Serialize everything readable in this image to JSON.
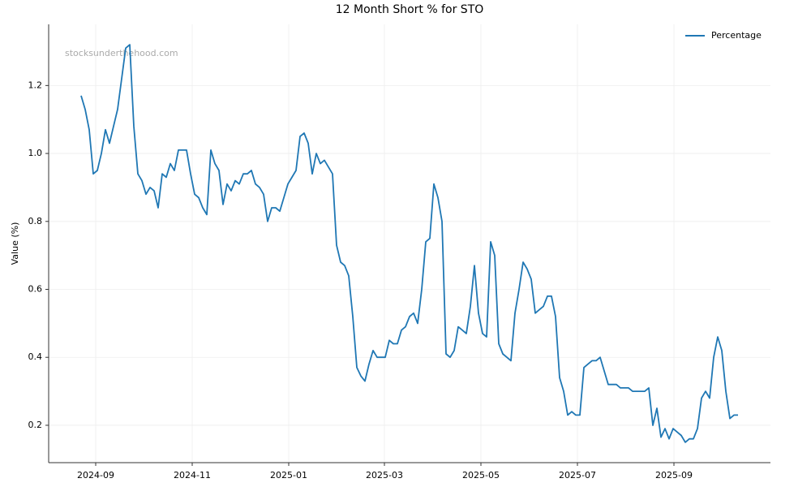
{
  "chart_data": {
    "type": "line",
    "title": "12 Month Short % for STO",
    "watermark": "stocksunderthehood.com",
    "ylabel": "Value (%)",
    "legend": "upper right",
    "grid": true,
    "series": [
      {
        "name": "Percentage",
        "color": "#1f77b4",
        "values": [
          1.17,
          1.13,
          1.07,
          0.94,
          0.95,
          1.0,
          1.07,
          1.03,
          1.08,
          1.13,
          1.22,
          1.31,
          1.32,
          1.08,
          0.94,
          0.92,
          0.88,
          0.9,
          0.89,
          0.84,
          0.94,
          0.93,
          0.97,
          0.95,
          1.01,
          1.01,
          1.01,
          0.94,
          0.88,
          0.87,
          0.84,
          0.82,
          1.01,
          0.97,
          0.95,
          0.85,
          0.91,
          0.89,
          0.92,
          0.91,
          0.94,
          0.94,
          0.95,
          0.91,
          0.9,
          0.88,
          0.8,
          0.84,
          0.84,
          0.83,
          0.87,
          0.91,
          0.93,
          0.95,
          1.05,
          1.06,
          1.03,
          0.94,
          1.0,
          0.97,
          0.98,
          0.96,
          0.94,
          0.73,
          0.68,
          0.67,
          0.64,
          0.52,
          0.37,
          0.345,
          0.33,
          0.38,
          0.42,
          0.4,
          0.4,
          0.4,
          0.45,
          0.44,
          0.44,
          0.48,
          0.49,
          0.52,
          0.53,
          0.5,
          0.6,
          0.74,
          0.75,
          0.91,
          0.87,
          0.8,
          0.41,
          0.4,
          0.42,
          0.49,
          0.48,
          0.47,
          0.55,
          0.67,
          0.53,
          0.47,
          0.46,
          0.74,
          0.7,
          0.44,
          0.41,
          0.4,
          0.39,
          0.53,
          0.6,
          0.68,
          0.66,
          0.63,
          0.53,
          0.54,
          0.55,
          0.58,
          0.58,
          0.52,
          0.34,
          0.3,
          0.23,
          0.24,
          0.23,
          0.23,
          0.37,
          0.38,
          0.39,
          0.39,
          0.4,
          0.36,
          0.32,
          0.32,
          0.32,
          0.31,
          0.31,
          0.31,
          0.3,
          0.3,
          0.3,
          0.3,
          0.31,
          0.2,
          0.25,
          0.165,
          0.19,
          0.16,
          0.19,
          0.18,
          0.17,
          0.15,
          0.16,
          0.16,
          0.19,
          0.28,
          0.3,
          0.28,
          0.4,
          0.46,
          0.42,
          0.3,
          0.22,
          0.23,
          0.23
        ]
      }
    ],
    "xlim": [
      -8,
      170
    ],
    "xticks": [
      {
        "value": 3.6,
        "label": "2024-09"
      },
      {
        "value": 27.4,
        "label": "2024-11"
      },
      {
        "value": 51.2,
        "label": "2025-01"
      },
      {
        "value": 74.8,
        "label": "2025-03"
      },
      {
        "value": 98.6,
        "label": "2025-05"
      },
      {
        "value": 122.4,
        "label": "2025-07"
      },
      {
        "value": 146.2,
        "label": "2025-09"
      }
    ],
    "ylim": [
      0.09,
      1.38
    ],
    "yticks": [
      0.2,
      0.4,
      0.6,
      0.8,
      {
        "value": 1.0,
        "label": "1.0"
      },
      1.2
    ]
  }
}
